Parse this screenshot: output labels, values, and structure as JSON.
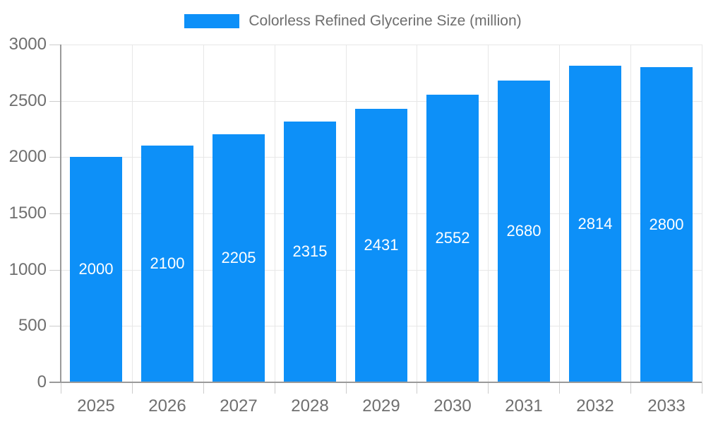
{
  "chart_data": {
    "type": "bar",
    "title": "Colorless Refined Glycerine Size (million)",
    "legend": [
      "Colorless Refined Glycerine Size (million)"
    ],
    "legend_position": "top",
    "categories": [
      "2025",
      "2026",
      "2027",
      "2028",
      "2029",
      "2030",
      "2031",
      "2032",
      "2033"
    ],
    "series": [
      {
        "name": "Colorless Refined Glycerine Size (million)",
        "values": [
          2000,
          2100,
          2205,
          2315,
          2431,
          2552,
          2680,
          2814,
          2800
        ]
      }
    ],
    "bar_value_labels": [
      "2000",
      "2100",
      "2205",
      "2315",
      "2431",
      "2552",
      "2680",
      "2814",
      "2800"
    ],
    "xlabel": "",
    "ylabel": "",
    "ylim": [
      0,
      3000
    ],
    "ytick_step": 500,
    "yticks": [
      "0",
      "500",
      "1000",
      "1500",
      "2000",
      "2500",
      "3000"
    ],
    "grid": true
  },
  "colors": {
    "bar": "#0d90f8",
    "bar_label_text": "#ffffff",
    "gridline": "#e7e7e7",
    "tick": "#cccccc",
    "axis_line": "#9a9a9a",
    "axis_text": "#6f6f6f",
    "legend_text": "#6e6e6e",
    "background": "#ffffff"
  }
}
